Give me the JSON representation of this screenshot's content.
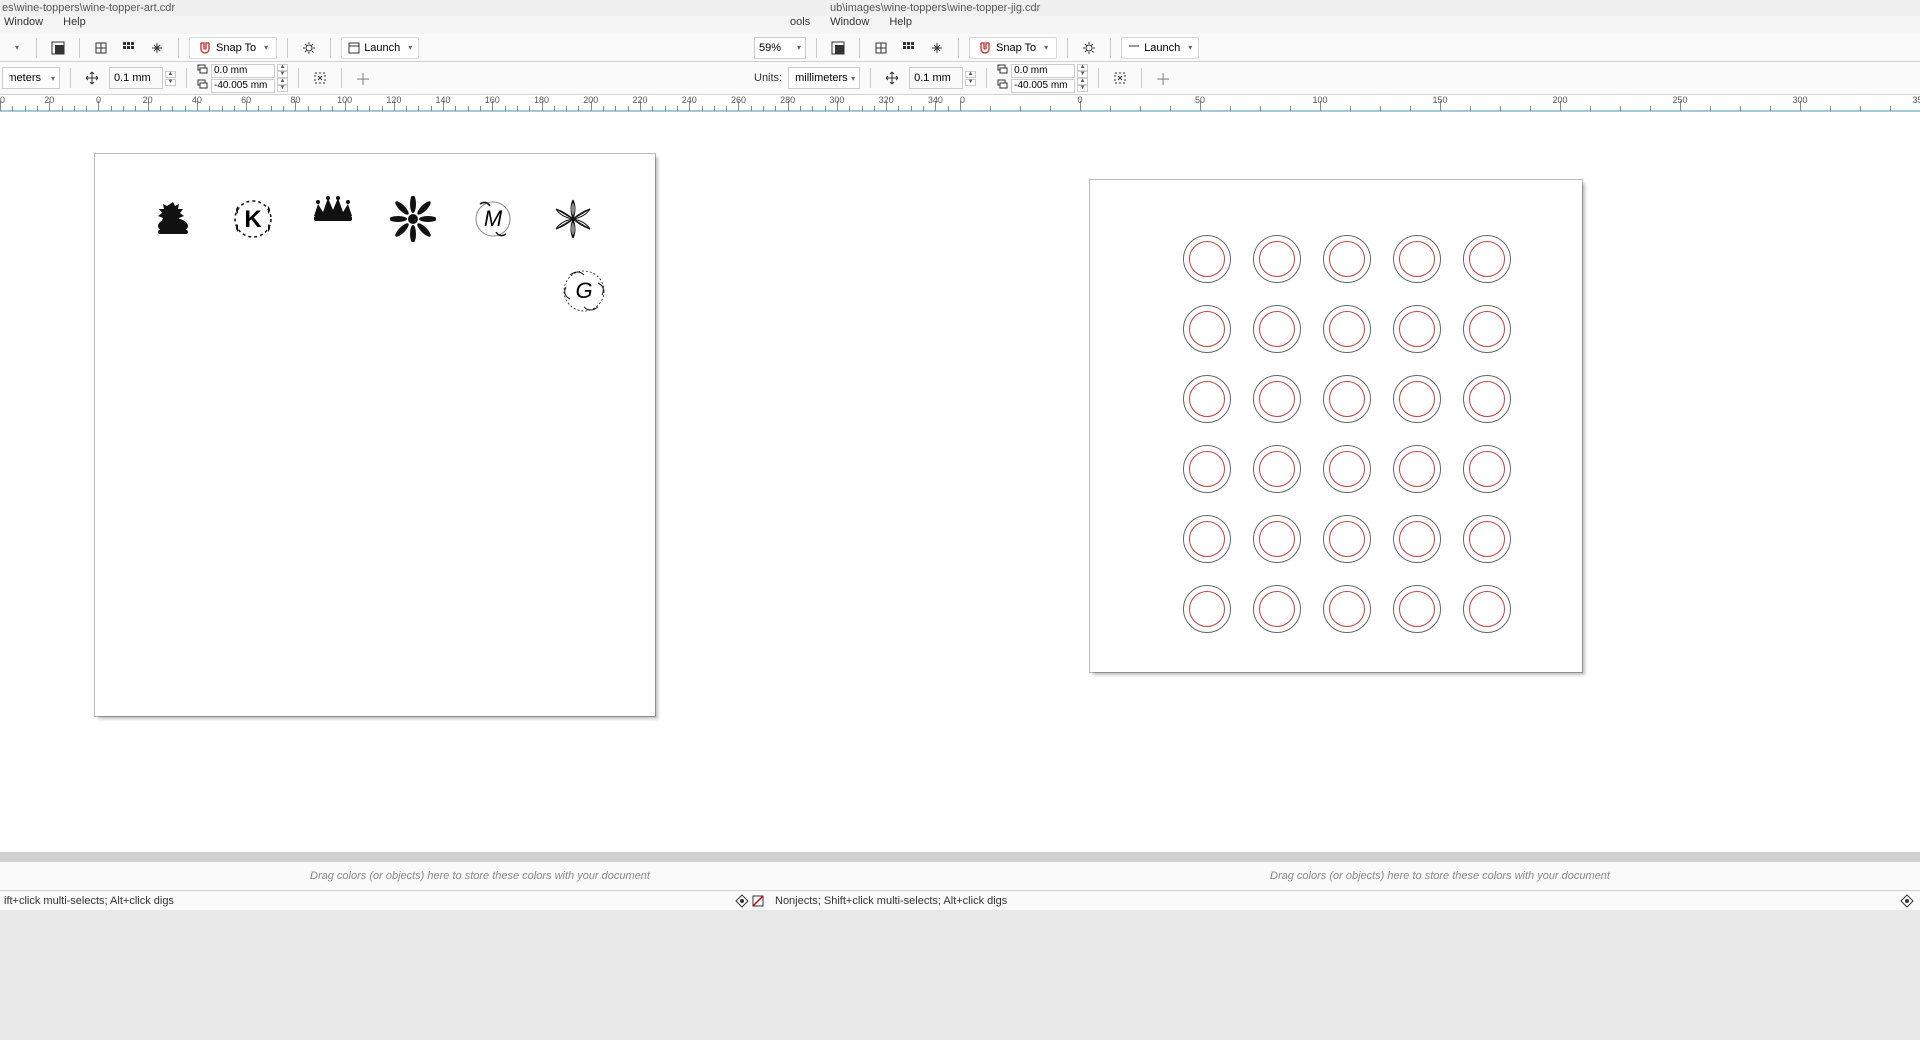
{
  "titles": {
    "left": "es\\wine-toppers\\wine-topper-art.cdr",
    "right": "ub\\images\\wine-toppers\\wine-topper-jig.cdr"
  },
  "menus": {
    "left": [
      "Window",
      "Help"
    ],
    "right": [
      "ools",
      "Window",
      "Help"
    ]
  },
  "toolbar": {
    "snap": "Snap To",
    "launch": "Launch",
    "zoom": "59%"
  },
  "props": {
    "units_label": "Units:",
    "units_value": "millimeters",
    "nudge": "0.1 mm",
    "x": "0.0 mm",
    "y": "-40.005 mm"
  },
  "ruler": {
    "left_start": -40,
    "left_end": 350,
    "left_step": 20,
    "right_start": -50,
    "right_end": 350,
    "right_step": 50
  },
  "palette_hint": "Drag colors (or objects) here to store these colors with your document",
  "status": {
    "left_text": "ift+click multi-selects; Alt+click digs",
    "right_text": "Nonjects; Shift+click multi-selects; Alt+click digs"
  },
  "art": {
    "items": [
      "crown1",
      "monogram-k",
      "crown2",
      "flower",
      "monogram-m",
      "poinsettia"
    ],
    "g_label": "G",
    "k_label": "K",
    "m_label": "M"
  },
  "jig": {
    "rows": 6,
    "cols": 5,
    "outer_color": "#666666",
    "inner_color": "#c04040"
  },
  "colors": {
    "bg": "#ffffff",
    "ruler_cyan": "#7ad6e6"
  }
}
